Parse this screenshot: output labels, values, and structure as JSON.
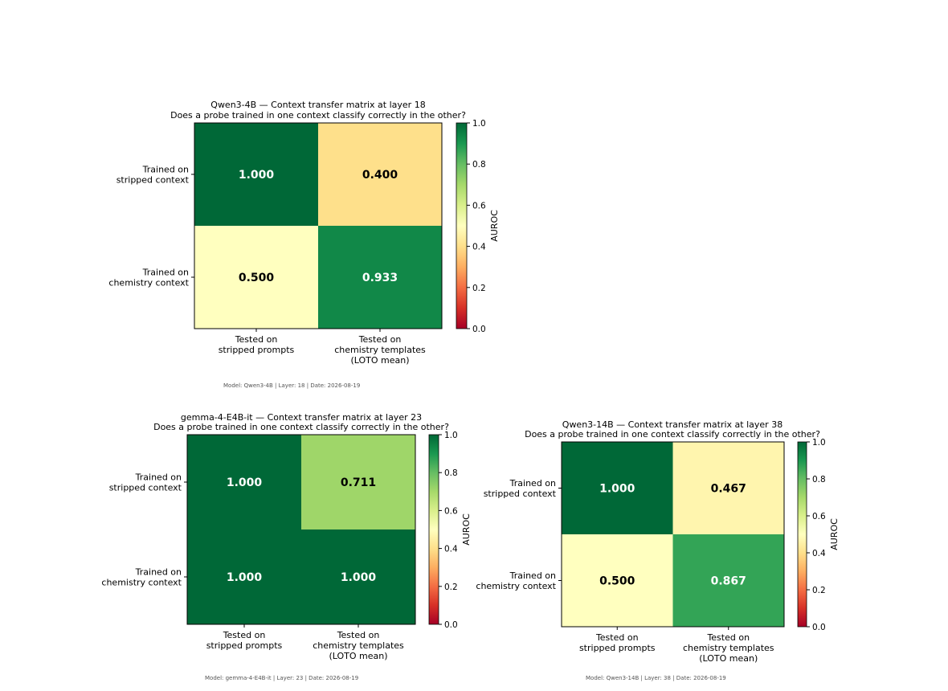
{
  "colors": {
    "colormap": "RdYlGn",
    "dark_text": "#000000",
    "light_text": "#ffffff",
    "caption_text": "#555555"
  },
  "chart_data": [
    {
      "type": "heatmap",
      "title": "Qwen3-4B — Context transfer matrix at layer 18",
      "subtitle": "Does a probe trained in one context classify correctly in the other?",
      "rows": [
        "Trained on\nstripped context",
        "Trained on\nchemistry context"
      ],
      "columns": [
        "Tested on\nstripped prompts",
        "Tested on\nchemistry templates\n(LOTO mean)"
      ],
      "values": [
        [
          1.0,
          0.4
        ],
        [
          0.5,
          0.933
        ]
      ],
      "value_labels": [
        [
          "1.000",
          "0.400"
        ],
        [
          "0.500",
          "0.933"
        ]
      ],
      "colorbar": {
        "label": "AUROC",
        "range": [
          0.0,
          1.0
        ],
        "ticks": [
          "0.0",
          "0.2",
          "0.4",
          "0.6",
          "0.8",
          "1.0"
        ]
      },
      "caption": "Model: Qwen3-4B  |  Layer: 18  |  Date: 2026-08-19"
    },
    {
      "type": "heatmap",
      "title": "gemma-4-E4B-it — Context transfer matrix at layer 23",
      "subtitle": "Does a probe trained in one context classify correctly in the other?",
      "rows": [
        "Trained on\nstripped context",
        "Trained on\nchemistry context"
      ],
      "columns": [
        "Tested on\nstripped prompts",
        "Tested on\nchemistry templates\n(LOTO mean)"
      ],
      "values": [
        [
          1.0,
          0.711
        ],
        [
          1.0,
          1.0
        ]
      ],
      "value_labels": [
        [
          "1.000",
          "0.711"
        ],
        [
          "1.000",
          "1.000"
        ]
      ],
      "colorbar": {
        "label": "AUROC",
        "range": [
          0.0,
          1.0
        ],
        "ticks": [
          "0.0",
          "0.2",
          "0.4",
          "0.6",
          "0.8",
          "1.0"
        ]
      },
      "caption": "Model: gemma-4-E4B-it  |  Layer: 23  |  Date: 2026-08-19"
    },
    {
      "type": "heatmap",
      "title": "Qwen3-14B — Context transfer matrix at layer 38",
      "subtitle": "Does a probe trained in one context classify correctly in the other?",
      "rows": [
        "Trained on\nstripped context",
        "Trained on\nchemistry context"
      ],
      "columns": [
        "Tested on\nstripped prompts",
        "Tested on\nchemistry templates\n(LOTO mean)"
      ],
      "values": [
        [
          1.0,
          0.467
        ],
        [
          0.5,
          0.867
        ]
      ],
      "value_labels": [
        [
          "1.000",
          "0.467"
        ],
        [
          "0.500",
          "0.867"
        ]
      ],
      "colorbar": {
        "label": "AUROC",
        "range": [
          0.0,
          1.0
        ],
        "ticks": [
          "0.0",
          "0.2",
          "0.4",
          "0.6",
          "0.8",
          "1.0"
        ]
      },
      "caption": "Model: Qwen3-14B  |  Layer: 38  |  Date: 2026-08-19"
    }
  ]
}
